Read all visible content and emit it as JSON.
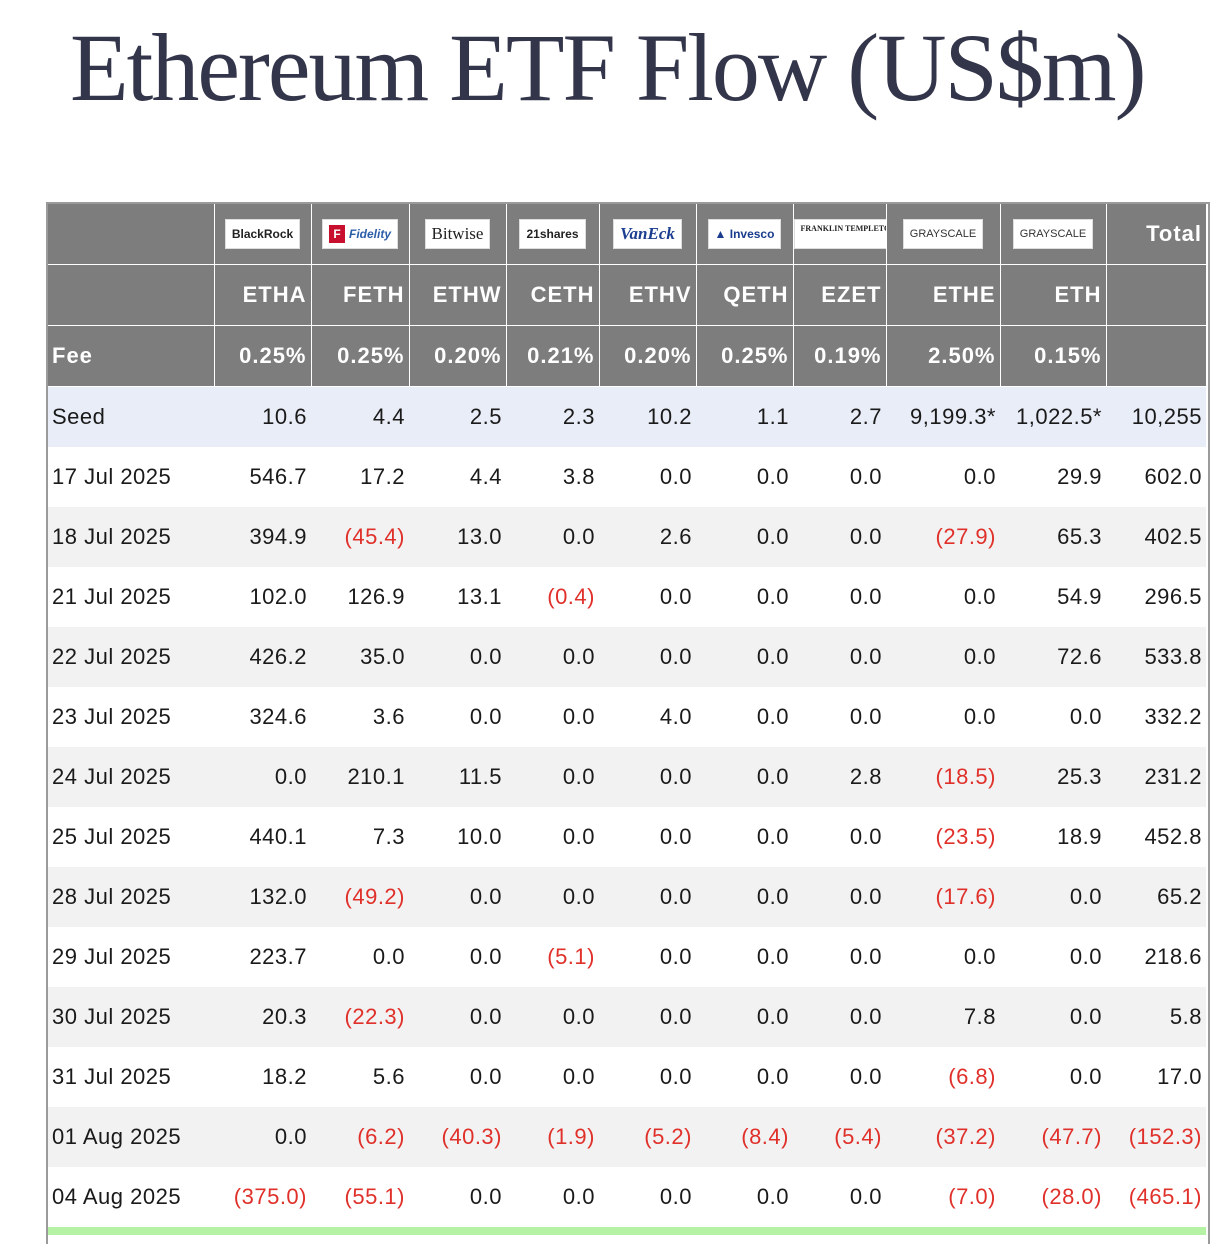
{
  "title": "Ethereum ETF Flow (US$m)",
  "providers": [
    {
      "name": "BlackRock",
      "ticker": "ETHA",
      "fee": "0.25%"
    },
    {
      "name": "Fidelity",
      "ticker": "FETH",
      "fee": "0.25%"
    },
    {
      "name": "Bitwise",
      "ticker": "ETHW",
      "fee": "0.20%"
    },
    {
      "name": "21shares",
      "ticker": "CETH",
      "fee": "0.21%"
    },
    {
      "name": "VanEck",
      "ticker": "ETHV",
      "fee": "0.20%"
    },
    {
      "name": "Invesco",
      "ticker": "QETH",
      "fee": "0.25%"
    },
    {
      "name": "FRANKLIN TEMPLETON",
      "ticker": "EZET",
      "fee": "0.19%"
    },
    {
      "name": "GRAYSCALE",
      "ticker": "ETHE",
      "fee": "2.50%"
    },
    {
      "name": "GRAYSCALE",
      "ticker": "ETH",
      "fee": "0.15%"
    }
  ],
  "total_label": "Total",
  "fee_label": "Fee",
  "rows": [
    {
      "date": "Seed",
      "values": [
        "10.6",
        "4.4",
        "2.5",
        "2.3",
        "10.2",
        "1.1",
        "2.7",
        "9,199.3*",
        "1,022.5*",
        "10,255"
      ]
    },
    {
      "date": "17 Jul 2025",
      "values": [
        "546.7",
        "17.2",
        "4.4",
        "3.8",
        "0.0",
        "0.0",
        "0.0",
        "0.0",
        "29.9",
        "602.0"
      ]
    },
    {
      "date": "18 Jul 2025",
      "values": [
        "394.9",
        "(45.4)",
        "13.0",
        "0.0",
        "2.6",
        "0.0",
        "0.0",
        "(27.9)",
        "65.3",
        "402.5"
      ]
    },
    {
      "date": "21 Jul 2025",
      "values": [
        "102.0",
        "126.9",
        "13.1",
        "(0.4)",
        "0.0",
        "0.0",
        "0.0",
        "0.0",
        "54.9",
        "296.5"
      ]
    },
    {
      "date": "22 Jul 2025",
      "values": [
        "426.2",
        "35.0",
        "0.0",
        "0.0",
        "0.0",
        "0.0",
        "0.0",
        "0.0",
        "72.6",
        "533.8"
      ]
    },
    {
      "date": "23 Jul 2025",
      "values": [
        "324.6",
        "3.6",
        "0.0",
        "0.0",
        "4.0",
        "0.0",
        "0.0",
        "0.0",
        "0.0",
        "332.2"
      ]
    },
    {
      "date": "24 Jul 2025",
      "values": [
        "0.0",
        "210.1",
        "11.5",
        "0.0",
        "0.0",
        "0.0",
        "2.8",
        "(18.5)",
        "25.3",
        "231.2"
      ]
    },
    {
      "date": "25 Jul 2025",
      "values": [
        "440.1",
        "7.3",
        "10.0",
        "0.0",
        "0.0",
        "0.0",
        "0.0",
        "(23.5)",
        "18.9",
        "452.8"
      ]
    },
    {
      "date": "28 Jul 2025",
      "values": [
        "132.0",
        "(49.2)",
        "0.0",
        "0.0",
        "0.0",
        "0.0",
        "0.0",
        "(17.6)",
        "0.0",
        "65.2"
      ]
    },
    {
      "date": "29 Jul 2025",
      "values": [
        "223.7",
        "0.0",
        "0.0",
        "(5.1)",
        "0.0",
        "0.0",
        "0.0",
        "0.0",
        "0.0",
        "218.6"
      ]
    },
    {
      "date": "30 Jul 2025",
      "values": [
        "20.3",
        "(22.3)",
        "0.0",
        "0.0",
        "0.0",
        "0.0",
        "0.0",
        "7.8",
        "0.0",
        "5.8"
      ]
    },
    {
      "date": "31 Jul 2025",
      "values": [
        "18.2",
        "5.6",
        "0.0",
        "0.0",
        "0.0",
        "0.0",
        "0.0",
        "(6.8)",
        "0.0",
        "17.0"
      ]
    },
    {
      "date": "01 Aug 2025",
      "values": [
        "0.0",
        "(6.2)",
        "(40.3)",
        "(1.9)",
        "(5.2)",
        "(8.4)",
        "(5.4)",
        "(37.2)",
        "(47.7)",
        "(152.3)"
      ]
    },
    {
      "date": "04 Aug 2025",
      "values": [
        "(375.0)",
        "(55.1)",
        "0.0",
        "0.0",
        "0.0",
        "0.0",
        "0.0",
        "(7.0)",
        "(28.0)",
        "(465.1)"
      ]
    }
  ],
  "colors": {
    "header_bg": "#7d7d7d",
    "negative": "#e0302a",
    "seed_row_bg": "#e9edf7",
    "total_row_bg": "#b5f2a4"
  }
}
